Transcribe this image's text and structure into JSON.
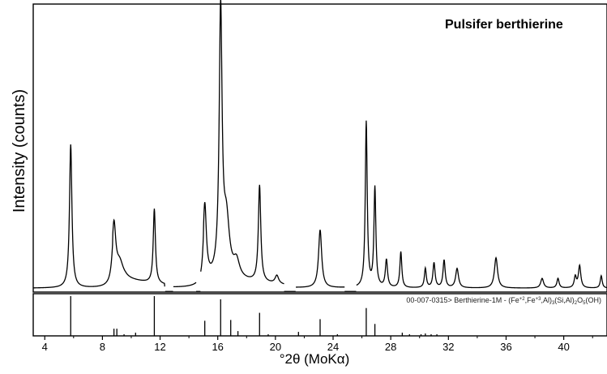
{
  "chart_data": {
    "type": "line",
    "title": "Pulsifer berthierine",
    "ylabel": "Intensity (counts)",
    "xlabel": "°2θ (MoKα)",
    "xlim": [
      3.2,
      43
    ],
    "xticks": [
      4,
      8,
      12,
      16,
      20,
      24,
      28,
      32,
      36,
      40
    ],
    "ylim": [
      0,
      100
    ],
    "grid": false,
    "legend": "none",
    "pattern": {
      "peaks": [
        {
          "x": 5.8,
          "y": 52,
          "w": 0.1
        },
        {
          "x": 8.8,
          "y": 20,
          "w": 0.15
        },
        {
          "x": 9.2,
          "y": 6,
          "w": 0.3
        },
        {
          "x": 11.6,
          "y": 27,
          "w": 0.09
        },
        {
          "x": 15.1,
          "y": 27,
          "w": 0.13
        },
        {
          "x": 16.2,
          "y": 96,
          "w": 0.12
        },
        {
          "x": 16.6,
          "y": 20,
          "w": 0.25
        },
        {
          "x": 17.3,
          "y": 6,
          "w": 0.25
        },
        {
          "x": 18.9,
          "y": 35,
          "w": 0.1
        },
        {
          "x": 20.1,
          "y": 3,
          "w": 0.15
        },
        {
          "x": 23.1,
          "y": 21,
          "w": 0.13
        },
        {
          "x": 26.3,
          "y": 60,
          "w": 0.08
        },
        {
          "x": 26.9,
          "y": 36,
          "w": 0.08
        },
        {
          "x": 27.7,
          "y": 10,
          "w": 0.09
        },
        {
          "x": 28.7,
          "y": 13,
          "w": 0.08
        },
        {
          "x": 30.4,
          "y": 7,
          "w": 0.08
        },
        {
          "x": 31.0,
          "y": 9,
          "w": 0.09
        },
        {
          "x": 31.7,
          "y": 10,
          "w": 0.09
        },
        {
          "x": 32.6,
          "y": 7,
          "w": 0.12
        },
        {
          "x": 35.3,
          "y": 11,
          "w": 0.13
        },
        {
          "x": 38.5,
          "y": 3.5,
          "w": 0.12
        },
        {
          "x": 39.6,
          "y": 3.5,
          "w": 0.09
        },
        {
          "x": 40.8,
          "y": 4,
          "w": 0.09
        },
        {
          "x": 41.1,
          "y": 8,
          "w": 0.1
        },
        {
          "x": 42.6,
          "y": 4.5,
          "w": 0.08
        }
      ],
      "baseline_raised": [
        {
          "x0": 8.7,
          "x1": 12.3,
          "y": 3
        },
        {
          "x0": 15.0,
          "x1": 20.6,
          "y": 3
        }
      ],
      "gaps": [
        [
          12.35,
          12.9
        ],
        [
          14.5,
          14.8
        ],
        [
          20.6,
          21.4
        ],
        [
          24.8,
          25.6
        ]
      ]
    },
    "reference": {
      "label": "00-007-0315> Berthierine-1M - (Fe+2,Fe+3,Al)3(Si,Al)2O5(OH)",
      "label_parts": {
        "a": "00-007-0315> Berthierine-1M - (Fe",
        "b": "+2",
        "c": ",Fe",
        "d": "+3",
        "e": ",Al)",
        "f": "3",
        "g": "(Si,Al)",
        "h": "2",
        "i": "O",
        "j": "5",
        "k": "(OH)"
      },
      "ylim": [
        0,
        100
      ],
      "lines": [
        {
          "x": 5.8,
          "y": 100
        },
        {
          "x": 8.8,
          "y": 18
        },
        {
          "x": 9.0,
          "y": 18
        },
        {
          "x": 9.5,
          "y": 4
        },
        {
          "x": 10.3,
          "y": 8
        },
        {
          "x": 11.6,
          "y": 100
        },
        {
          "x": 15.1,
          "y": 38
        },
        {
          "x": 16.2,
          "y": 92
        },
        {
          "x": 16.9,
          "y": 40
        },
        {
          "x": 17.4,
          "y": 12
        },
        {
          "x": 18.9,
          "y": 58
        },
        {
          "x": 19.5,
          "y": 4
        },
        {
          "x": 21.6,
          "y": 10
        },
        {
          "x": 23.1,
          "y": 42
        },
        {
          "x": 24.3,
          "y": 4
        },
        {
          "x": 26.3,
          "y": 70
        },
        {
          "x": 26.9,
          "y": 30
        },
        {
          "x": 28.8,
          "y": 8
        },
        {
          "x": 29.3,
          "y": 4
        },
        {
          "x": 30.1,
          "y": 4
        },
        {
          "x": 30.4,
          "y": 6
        },
        {
          "x": 30.8,
          "y": 4
        },
        {
          "x": 31.2,
          "y": 4
        }
      ]
    }
  }
}
